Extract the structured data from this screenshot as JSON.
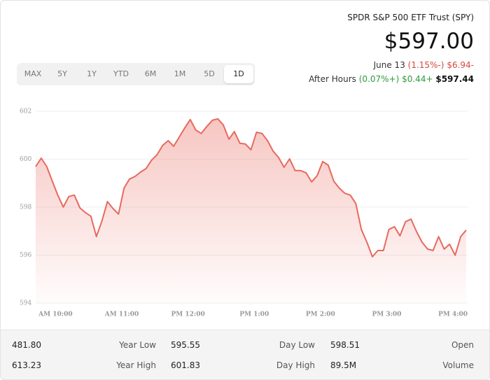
{
  "header": {
    "name": "SPDR S&P 500 ETF Trust (SPY)",
    "price": "$597.00",
    "date": "June 13",
    "change_pct": "(1.15%-)",
    "change": "$6.94-",
    "after_hours_label": "After Hours",
    "after_hours_pct": "(0.07%+)",
    "after_hours_change": "$0.44+",
    "after_hours_price": "$597.44"
  },
  "ranges": [
    "MAX",
    "5Y",
    "1Y",
    "YTD",
    "6M",
    "1M",
    "5D",
    "1D"
  ],
  "active_range": 7,
  "chart_data": {
    "type": "area",
    "color": "#e8695e",
    "grid": true,
    "x": [
      582,
      587,
      592,
      597,
      602,
      607,
      612,
      617,
      622,
      627,
      632,
      637,
      642,
      647,
      652,
      657,
      662,
      667,
      672,
      677,
      682,
      687,
      692,
      697,
      702,
      707,
      712,
      717,
      722,
      727,
      732,
      737,
      742,
      747,
      752,
      757,
      762,
      767,
      772,
      777,
      782,
      787,
      792,
      797,
      802,
      807,
      812,
      817,
      822,
      827,
      832,
      837,
      842,
      847,
      852,
      857,
      862,
      867,
      872,
      877,
      882,
      887,
      892,
      897,
      902,
      907,
      912,
      917,
      922,
      927,
      932,
      937,
      942,
      947,
      952,
      957,
      962,
      967,
      972
    ],
    "values": [
      599.69,
      600.04,
      599.69,
      599.08,
      598.5,
      598.0,
      598.44,
      598.5,
      597.97,
      597.77,
      597.62,
      596.77,
      597.42,
      598.23,
      597.94,
      597.71,
      598.79,
      599.17,
      599.28,
      599.46,
      599.61,
      599.96,
      600.19,
      600.57,
      600.77,
      600.54,
      600.92,
      601.3,
      601.65,
      601.21,
      601.07,
      601.36,
      601.62,
      601.68,
      601.42,
      600.83,
      601.15,
      600.66,
      600.63,
      600.39,
      601.12,
      601.07,
      600.77,
      600.34,
      600.07,
      599.66,
      600.01,
      599.52,
      599.52,
      599.43,
      599.05,
      599.31,
      599.9,
      599.75,
      599.08,
      598.79,
      598.58,
      598.5,
      598.15,
      597.07,
      596.54,
      595.93,
      596.19,
      596.19,
      597.07,
      597.18,
      596.8,
      597.39,
      597.5,
      596.98,
      596.54,
      596.25,
      596.19,
      596.77,
      596.25,
      596.45,
      595.99,
      596.77,
      597.04
    ],
    "xlim": [
      582,
      972
    ],
    "xticks": [
      {
        "value": 600,
        "label": "AM 10:00"
      },
      {
        "value": 660,
        "label": "AM 11:00"
      },
      {
        "value": 720,
        "label": "PM 12:00"
      },
      {
        "value": 780,
        "label": "PM 1:00"
      },
      {
        "value": 840,
        "label": "PM 2:00"
      },
      {
        "value": 900,
        "label": "PM 3:00"
      },
      {
        "value": 960,
        "label": "PM 4:00"
      }
    ],
    "ylim": [
      594,
      602.2
    ],
    "yticks": [
      594,
      596,
      598,
      600,
      602
    ]
  },
  "stats": {
    "rows": [
      [
        "481.80",
        "Year Low",
        "595.55",
        "Day Low",
        "598.51",
        "Open"
      ],
      [
        "613.23",
        "Year High",
        "601.83",
        "Day High",
        "89.5M",
        "Volume"
      ]
    ]
  }
}
